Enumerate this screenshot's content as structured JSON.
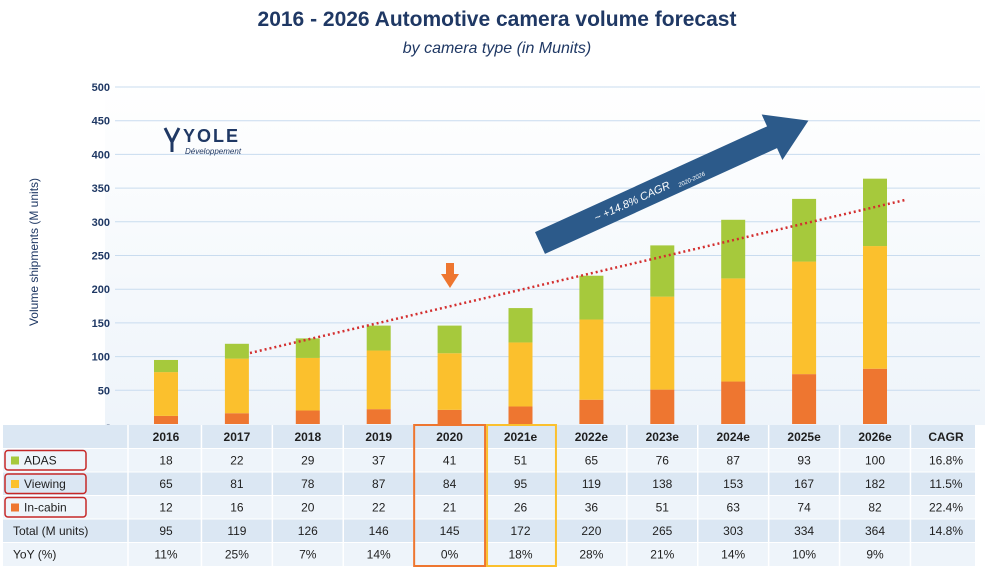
{
  "title": "2016 - 2026 Automotive camera volume forecast",
  "subtitle": "by camera type (in Munits)",
  "logo": {
    "name": "YOLE",
    "tagline": "Développement"
  },
  "colors": {
    "adas": "#a6c93c",
    "viewing": "#fbc02d",
    "incabin": "#ee7630",
    "title": "#1f3864",
    "arrow": "#2c5a8a",
    "trend": "#d32f2f"
  },
  "chart_data": {
    "type": "bar",
    "stacked": true,
    "title": "2016 - 2026 Automotive camera volume forecast",
    "subtitle": "by camera type (in Munits)",
    "ylabel": "Volume shipments (M units)",
    "ylim": [
      0,
      500
    ],
    "yticks": [
      50,
      100,
      150,
      200,
      250,
      300,
      350,
      400,
      450,
      500
    ],
    "categories": [
      "2016",
      "2017",
      "2018",
      "2019",
      "2020",
      "2021e",
      "2022e",
      "2023e",
      "2024e",
      "2025e",
      "2026e"
    ],
    "series": [
      {
        "name": "In-cabin",
        "values": [
          12,
          16,
          20,
          22,
          21,
          26,
          36,
          51,
          63,
          74,
          82
        ],
        "cagr": "22.4%"
      },
      {
        "name": "Viewing",
        "values": [
          65,
          81,
          78,
          87,
          84,
          95,
          119,
          138,
          153,
          167,
          182
        ],
        "cagr": "11.5%"
      },
      {
        "name": "ADAS",
        "values": [
          18,
          22,
          29,
          37,
          41,
          51,
          65,
          76,
          87,
          93,
          100
        ],
        "cagr": "16.8%"
      }
    ],
    "totals": [
      "95",
      "119",
      "126",
      "146",
      "145",
      "172",
      "220",
      "265",
      "303",
      "334",
      "364"
    ],
    "total_cagr": "14.8%",
    "yoy": [
      "11%",
      "25%",
      "7%",
      "14%",
      "0%",
      "18%",
      "28%",
      "21%",
      "14%",
      "10%",
      "9%"
    ],
    "annotation": "~ +14.8% CAGR",
    "annotation_sub": "2020-2026"
  },
  "table": {
    "cagr_header": "CAGR",
    "row_labels": {
      "adas": "ADAS",
      "viewing": "Viewing",
      "incabin": "In-cabin",
      "total": "Total (M units)",
      "yoy": "YoY (%)"
    }
  }
}
